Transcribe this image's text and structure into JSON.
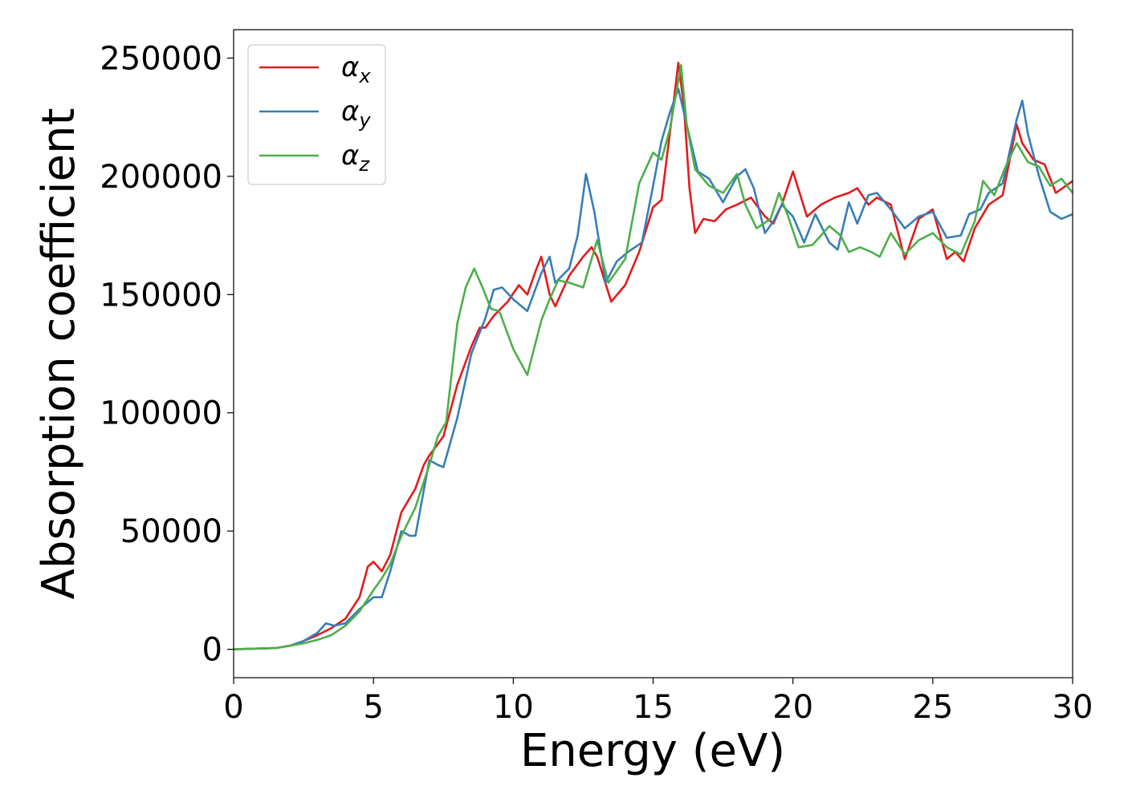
{
  "chart_data": {
    "type": "line",
    "xlabel": "Energy (eV)",
    "ylabel": "Absorption coefficient",
    "xlim": [
      0,
      30
    ],
    "ylim": [
      -12000,
      262000
    ],
    "xticks": [
      0,
      5,
      10,
      15,
      20,
      25,
      30
    ],
    "yticks": [
      0,
      50000,
      100000,
      150000,
      200000,
      250000
    ],
    "grid": false,
    "legend_position": "top-left",
    "series": [
      {
        "name": "α_x",
        "label_main": "α",
        "label_sub": "x",
        "color": "#e41a1c",
        "points": [
          [
            0,
            0
          ],
          [
            1.5,
            500
          ],
          [
            2,
            1500
          ],
          [
            2.5,
            3500
          ],
          [
            3,
            6000
          ],
          [
            3.5,
            9000
          ],
          [
            4,
            13000
          ],
          [
            4.5,
            22000
          ],
          [
            4.8,
            35000
          ],
          [
            5,
            37000
          ],
          [
            5.3,
            33000
          ],
          [
            5.6,
            40000
          ],
          [
            6,
            58000
          ],
          [
            6.5,
            68000
          ],
          [
            6.8,
            78000
          ],
          [
            7,
            82000
          ],
          [
            7.5,
            90000
          ],
          [
            8,
            112000
          ],
          [
            8.5,
            128000
          ],
          [
            8.8,
            136000
          ],
          [
            9,
            136000
          ],
          [
            9.3,
            141000
          ],
          [
            9.8,
            147000
          ],
          [
            10.2,
            154000
          ],
          [
            10.5,
            150000
          ],
          [
            10.8,
            160000
          ],
          [
            11,
            166000
          ],
          [
            11.3,
            150000
          ],
          [
            11.5,
            145000
          ],
          [
            12,
            158000
          ],
          [
            12.5,
            166000
          ],
          [
            12.8,
            170000
          ],
          [
            13,
            166000
          ],
          [
            13.5,
            147000
          ],
          [
            14,
            154000
          ],
          [
            14.5,
            168000
          ],
          [
            15,
            187000
          ],
          [
            15.3,
            190000
          ],
          [
            15.7,
            228000
          ],
          [
            15.9,
            248000
          ],
          [
            16.1,
            230000
          ],
          [
            16.3,
            195000
          ],
          [
            16.5,
            176000
          ],
          [
            16.8,
            182000
          ],
          [
            17.2,
            181000
          ],
          [
            17.6,
            186000
          ],
          [
            18,
            188000
          ],
          [
            18.5,
            191000
          ],
          [
            19,
            183000
          ],
          [
            19.3,
            180000
          ],
          [
            19.6,
            188000
          ],
          [
            20,
            202000
          ],
          [
            20.5,
            183000
          ],
          [
            21,
            188000
          ],
          [
            21.5,
            191000
          ],
          [
            22,
            193000
          ],
          [
            22.3,
            195000
          ],
          [
            22.7,
            188000
          ],
          [
            23,
            191000
          ],
          [
            23.5,
            188000
          ],
          [
            24,
            165000
          ],
          [
            24.5,
            182000
          ],
          [
            25,
            186000
          ],
          [
            25.5,
            165000
          ],
          [
            25.8,
            168000
          ],
          [
            26.1,
            164000
          ],
          [
            26.5,
            178000
          ],
          [
            27,
            188000
          ],
          [
            27.5,
            192000
          ],
          [
            28,
            222000
          ],
          [
            28.2,
            214000
          ],
          [
            28.6,
            207000
          ],
          [
            29,
            205000
          ],
          [
            29.4,
            193000
          ],
          [
            30,
            198000
          ]
        ]
      },
      {
        "name": "α_y",
        "label_main": "α",
        "label_sub": "y",
        "color": "#377eb8",
        "points": [
          [
            0,
            0
          ],
          [
            1.5,
            500
          ],
          [
            2,
            1500
          ],
          [
            2.5,
            3500
          ],
          [
            3,
            7000
          ],
          [
            3.3,
            11000
          ],
          [
            3.6,
            10000
          ],
          [
            4,
            11000
          ],
          [
            4.5,
            17000
          ],
          [
            5,
            22000
          ],
          [
            5.3,
            22000
          ],
          [
            5.6,
            33000
          ],
          [
            6,
            50000
          ],
          [
            6.3,
            48000
          ],
          [
            6.5,
            48000
          ],
          [
            7,
            80000
          ],
          [
            7.3,
            78000
          ],
          [
            7.5,
            77000
          ],
          [
            8,
            98000
          ],
          [
            8.5,
            125000
          ],
          [
            9,
            140000
          ],
          [
            9.3,
            152000
          ],
          [
            9.6,
            153000
          ],
          [
            10,
            148000
          ],
          [
            10.5,
            143000
          ],
          [
            11,
            159000
          ],
          [
            11.3,
            166000
          ],
          [
            11.5,
            155000
          ],
          [
            12,
            161000
          ],
          [
            12.3,
            175000
          ],
          [
            12.6,
            201000
          ],
          [
            12.9,
            185000
          ],
          [
            13.3,
            155000
          ],
          [
            13.7,
            164000
          ],
          [
            14.1,
            168000
          ],
          [
            14.6,
            172000
          ],
          [
            15,
            196000
          ],
          [
            15.3,
            215000
          ],
          [
            15.6,
            227000
          ],
          [
            15.9,
            237000
          ],
          [
            16.2,
            222000
          ],
          [
            16.6,
            202000
          ],
          [
            17,
            199000
          ],
          [
            17.5,
            189000
          ],
          [
            18,
            200000
          ],
          [
            18.3,
            203000
          ],
          [
            18.6,
            195000
          ],
          [
            19,
            176000
          ],
          [
            19.3,
            181000
          ],
          [
            19.6,
            188000
          ],
          [
            20,
            183000
          ],
          [
            20.4,
            172000
          ],
          [
            20.8,
            184000
          ],
          [
            21.3,
            172000
          ],
          [
            21.6,
            169000
          ],
          [
            22,
            189000
          ],
          [
            22.3,
            180000
          ],
          [
            22.7,
            192000
          ],
          [
            23,
            193000
          ],
          [
            23.5,
            186000
          ],
          [
            24,
            178000
          ],
          [
            24.5,
            183000
          ],
          [
            25,
            185000
          ],
          [
            25.5,
            174000
          ],
          [
            26,
            175000
          ],
          [
            26.3,
            184000
          ],
          [
            26.7,
            186000
          ],
          [
            27,
            193000
          ],
          [
            27.5,
            197000
          ],
          [
            28,
            224000
          ],
          [
            28.2,
            232000
          ],
          [
            28.4,
            218000
          ],
          [
            28.8,
            200000
          ],
          [
            29.2,
            185000
          ],
          [
            29.6,
            182000
          ],
          [
            30,
            184000
          ]
        ]
      },
      {
        "name": "α_z",
        "label_main": "α",
        "label_sub": "z",
        "color": "#4daf4a",
        "points": [
          [
            0,
            0
          ],
          [
            1.5,
            500
          ],
          [
            2,
            1500
          ],
          [
            2.5,
            2500
          ],
          [
            3,
            4000
          ],
          [
            3.5,
            6000
          ],
          [
            4,
            10000
          ],
          [
            4.5,
            16000
          ],
          [
            5,
            25000
          ],
          [
            5.3,
            30000
          ],
          [
            5.6,
            36000
          ],
          [
            6,
            48000
          ],
          [
            6.5,
            60000
          ],
          [
            7,
            78000
          ],
          [
            7.3,
            90000
          ],
          [
            7.6,
            96000
          ],
          [
            8,
            138000
          ],
          [
            8.3,
            153000
          ],
          [
            8.6,
            161000
          ],
          [
            8.9,
            153000
          ],
          [
            9.2,
            144000
          ],
          [
            9.5,
            143000
          ],
          [
            10,
            127000
          ],
          [
            10.5,
            116000
          ],
          [
            11,
            139000
          ],
          [
            11.3,
            148000
          ],
          [
            11.6,
            156000
          ],
          [
            12,
            155000
          ],
          [
            12.5,
            153000
          ],
          [
            13,
            173000
          ],
          [
            13.4,
            155000
          ],
          [
            14,
            165000
          ],
          [
            14.5,
            197000
          ],
          [
            15,
            210000
          ],
          [
            15.3,
            207000
          ],
          [
            15.6,
            220000
          ],
          [
            16,
            247000
          ],
          [
            16.2,
            222000
          ],
          [
            16.5,
            203000
          ],
          [
            17,
            196000
          ],
          [
            17.5,
            193000
          ],
          [
            18,
            201000
          ],
          [
            18.3,
            188000
          ],
          [
            18.7,
            178000
          ],
          [
            19.2,
            182000
          ],
          [
            19.5,
            193000
          ],
          [
            19.8,
            184000
          ],
          [
            20.2,
            170000
          ],
          [
            20.7,
            171000
          ],
          [
            21,
            175000
          ],
          [
            21.3,
            179000
          ],
          [
            21.7,
            175000
          ],
          [
            22,
            168000
          ],
          [
            22.4,
            170000
          ],
          [
            22.8,
            168000
          ],
          [
            23.1,
            166000
          ],
          [
            23.5,
            176000
          ],
          [
            24,
            167000
          ],
          [
            24.5,
            173000
          ],
          [
            25,
            176000
          ],
          [
            25.5,
            170000
          ],
          [
            26,
            167000
          ],
          [
            26.5,
            181000
          ],
          [
            26.8,
            198000
          ],
          [
            27.2,
            192000
          ],
          [
            27.6,
            204000
          ],
          [
            28,
            214000
          ],
          [
            28.4,
            206000
          ],
          [
            28.8,
            204000
          ],
          [
            29.2,
            196000
          ],
          [
            29.6,
            199000
          ],
          [
            30,
            193000
          ]
        ]
      }
    ]
  }
}
